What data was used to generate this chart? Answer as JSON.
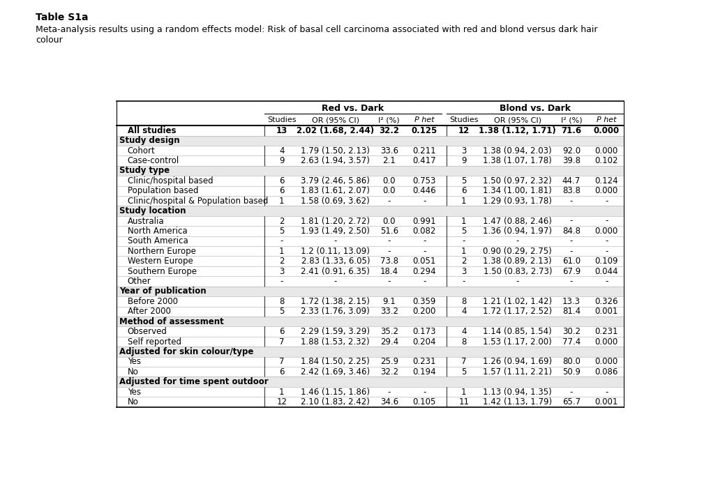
{
  "title": "Table S1a",
  "subtitle": "Meta-analysis results using a random effects model: Risk of basal cell carcinoma associated with red and blond versus dark hair\ncolour",
  "header_group1": "Red vs. Dark",
  "header_group2": "Blond vs. Dark",
  "col_headers": [
    "Studies",
    "OR (95% CI)",
    "I² (%)",
    "P het",
    "Studies",
    "OR (95% CI)",
    "I² (%)",
    "P het"
  ],
  "rows": [
    {
      "label": "All studies",
      "type": "data_bold",
      "red": [
        "13",
        "2.02 (1.68, 2.44)",
        "32.2",
        "0.125"
      ],
      "blond": [
        "12",
        "1.38 (1.12, 1.71)",
        "71.6",
        "0.000"
      ]
    },
    {
      "label": "Study design",
      "type": "section"
    },
    {
      "label": "Cohort",
      "type": "data",
      "red": [
        "4",
        "1.79 (1.50, 2.13)",
        "33.6",
        "0.211"
      ],
      "blond": [
        "3",
        "1.38 (0.94, 2.03)",
        "92.0",
        "0.000"
      ]
    },
    {
      "label": "Case-control",
      "type": "data",
      "red": [
        "9",
        "2.63 (1.94, 3.57)",
        "2.1",
        "0.417"
      ],
      "blond": [
        "9",
        "1.38 (1.07, 1.78)",
        "39.8",
        "0.102"
      ]
    },
    {
      "label": "Study type",
      "type": "section"
    },
    {
      "label": "Clinic/hospital based",
      "type": "data",
      "red": [
        "6",
        "3.79 (2.46, 5.86)",
        "0.0",
        "0.753"
      ],
      "blond": [
        "5",
        "1.50 (0.97, 2.32)",
        "44.7",
        "0.124"
      ]
    },
    {
      "label": "Population based",
      "type": "data",
      "red": [
        "6",
        "1.83 (1.61, 2.07)",
        "0.0",
        "0.446"
      ],
      "blond": [
        "6",
        "1.34 (1.00, 1.81)",
        "83.8",
        "0.000"
      ]
    },
    {
      "label": "Clinic/hospital & Population based",
      "type": "data",
      "red": [
        "1",
        "1.58 (0.69, 3.62)",
        "-",
        "-"
      ],
      "blond": [
        "1",
        "1.29 (0.93, 1.78)",
        "-",
        "-"
      ]
    },
    {
      "label": "Study location",
      "type": "section"
    },
    {
      "label": "Australia",
      "type": "data",
      "red": [
        "2",
        "1.81 (1.20, 2.72)",
        "0.0",
        "0.991"
      ],
      "blond": [
        "1",
        "1.47 (0.88, 2.46)",
        "-",
        "-"
      ]
    },
    {
      "label": "North America",
      "type": "data",
      "red": [
        "5",
        "1.93 (1.49, 2.50)",
        "51.6",
        "0.082"
      ],
      "blond": [
        "5",
        "1.36 (0.94, 1.97)",
        "84.8",
        "0.000"
      ]
    },
    {
      "label": "South America",
      "type": "data",
      "red": [
        "-",
        "-",
        "-",
        "-"
      ],
      "blond": [
        "-",
        "-",
        "-",
        "-"
      ]
    },
    {
      "label": "Northern Europe",
      "type": "data",
      "red": [
        "1",
        "1.2 (0.11, 13.09)",
        "-",
        "-"
      ],
      "blond": [
        "1",
        "0.90 (0.29, 2.75)",
        "-",
        "-"
      ]
    },
    {
      "label": "Western Europe",
      "type": "data",
      "red": [
        "2",
        "2.83 (1.33, 6.05)",
        "73.8",
        "0.051"
      ],
      "blond": [
        "2",
        "1.38 (0.89, 2.13)",
        "61.0",
        "0.109"
      ]
    },
    {
      "label": "Southern Europe",
      "type": "data",
      "red": [
        "3",
        "2.41 (0.91, 6.35)",
        "18.4",
        "0.294"
      ],
      "blond": [
        "3",
        "1.50 (0.83, 2.73)",
        "67.9",
        "0.044"
      ]
    },
    {
      "label": "Other",
      "type": "data",
      "red": [
        "-",
        "-",
        "-",
        "-"
      ],
      "blond": [
        "-",
        "-",
        "-",
        "-"
      ]
    },
    {
      "label": "Year of publication",
      "type": "section"
    },
    {
      "label": "Before 2000",
      "type": "data",
      "red": [
        "8",
        "1.72 (1.38, 2.15)",
        "9.1",
        "0.359"
      ],
      "blond": [
        "8",
        "1.21 (1.02, 1.42)",
        "13.3",
        "0.326"
      ]
    },
    {
      "label": "After 2000",
      "type": "data",
      "red": [
        "5",
        "2.33 (1.76, 3.09)",
        "33.2",
        "0.200"
      ],
      "blond": [
        "4",
        "1.72 (1.17, 2.52)",
        "81.4",
        "0.001"
      ]
    },
    {
      "label": "Method of assessment",
      "type": "section"
    },
    {
      "label": "Observed",
      "type": "data",
      "red": [
        "6",
        "2.29 (1.59, 3.29)",
        "35.2",
        "0.173"
      ],
      "blond": [
        "4",
        "1.14 (0.85, 1.54)",
        "30.2",
        "0.231"
      ]
    },
    {
      "label": "Self reported",
      "type": "data",
      "red": [
        "7",
        "1.88 (1.53, 2.32)",
        "29.4",
        "0.204"
      ],
      "blond": [
        "8",
        "1.53 (1.17, 2.00)",
        "77.4",
        "0.000"
      ]
    },
    {
      "label": "Adjusted for skin colour/type",
      "type": "section"
    },
    {
      "label": "Yes",
      "type": "data",
      "red": [
        "7",
        "1.84 (1.50, 2.25)",
        "25.9",
        "0.231"
      ],
      "blond": [
        "7",
        "1.26 (0.94, 1.69)",
        "80.0",
        "0.000"
      ]
    },
    {
      "label": "No",
      "type": "data",
      "red": [
        "6",
        "2.42 (1.69, 3.46)",
        "32.2",
        "0.194"
      ],
      "blond": [
        "5",
        "1.57 (1.11, 2.21)",
        "50.9",
        "0.086"
      ]
    },
    {
      "label": "Adjusted for time spent outdoor",
      "type": "section"
    },
    {
      "label": "Yes",
      "type": "data",
      "red": [
        "1",
        "1.46 (1.15, 1.86)",
        "-",
        "-"
      ],
      "blond": [
        "1",
        "1.13 (0.94, 1.35)",
        "-",
        "-"
      ]
    },
    {
      "label": "No",
      "type": "data",
      "red": [
        "12",
        "2.10 (1.83, 2.42)",
        "34.6",
        "0.105"
      ],
      "blond": [
        "11",
        "1.42 (1.13, 1.79)",
        "65.7",
        "0.001"
      ]
    }
  ],
  "bg_color_section": "#e8e8e8",
  "bg_color_data": "#ffffff",
  "line_color": "#000000"
}
